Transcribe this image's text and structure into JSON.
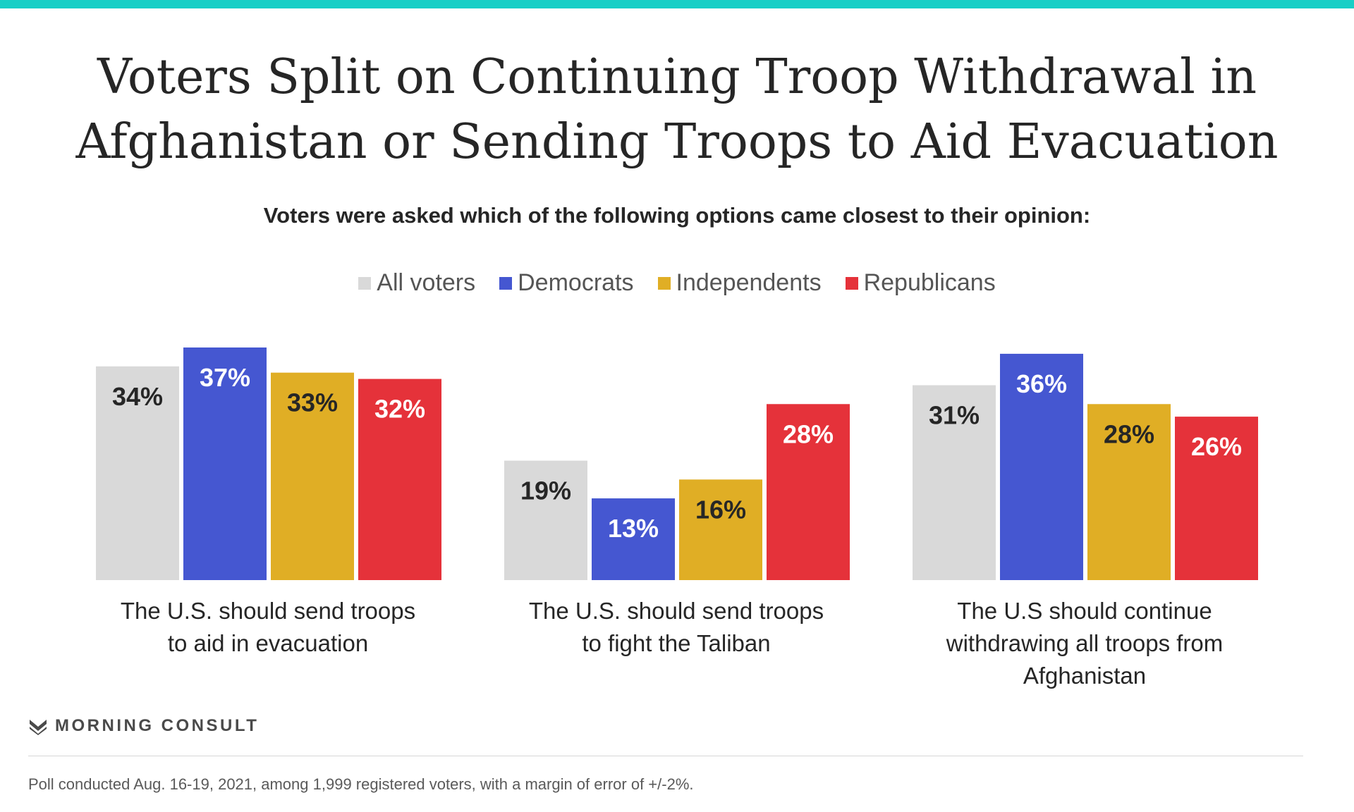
{
  "title_lines": [
    "Voters Split on Continuing Troop Withdrawal in",
    "Afghanistan or Sending Troops to Aid Evacuation"
  ],
  "subtitle": "Voters were asked which of the following options came closest to their opinion:",
  "legend": [
    {
      "name": "All voters",
      "color": "#d9d9d9"
    },
    {
      "name": "Democrats",
      "color": "#4557d1"
    },
    {
      "name": "Independents",
      "color": "#e0ae25"
    },
    {
      "name": "Republicans",
      "color": "#e5323a"
    }
  ],
  "chart_data": {
    "type": "bar",
    "categories": [
      [
        "The U.S. should send troops",
        "to aid in evacuation"
      ],
      [
        "The U.S. should send troops",
        "to fight the Taliban"
      ],
      [
        "The U.S should continue",
        "withdrawing all troops from",
        "Afghanistan"
      ]
    ],
    "series": [
      {
        "name": "All voters",
        "values": [
          34,
          19,
          31
        ],
        "color": "#d9d9d9",
        "label_color": "#262626"
      },
      {
        "name": "Democrats",
        "values": [
          37,
          13,
          36
        ],
        "color": "#4557d1",
        "label_color": "#ffffff"
      },
      {
        "name": "Independents",
        "values": [
          33,
          16,
          28
        ],
        "color": "#e0ae25",
        "label_color": "#262626"
      },
      {
        "name": "Republicans",
        "values": [
          32,
          28,
          26
        ],
        "color": "#e5323a",
        "label_color": "#ffffff"
      }
    ],
    "value_suffix": "%",
    "ylim": [
      0,
      37
    ]
  },
  "brand": "MORNING CONSULT",
  "footnote": "Poll conducted Aug. 16-19, 2021, among 1,999 registered voters, with a margin of error of +/-2%."
}
